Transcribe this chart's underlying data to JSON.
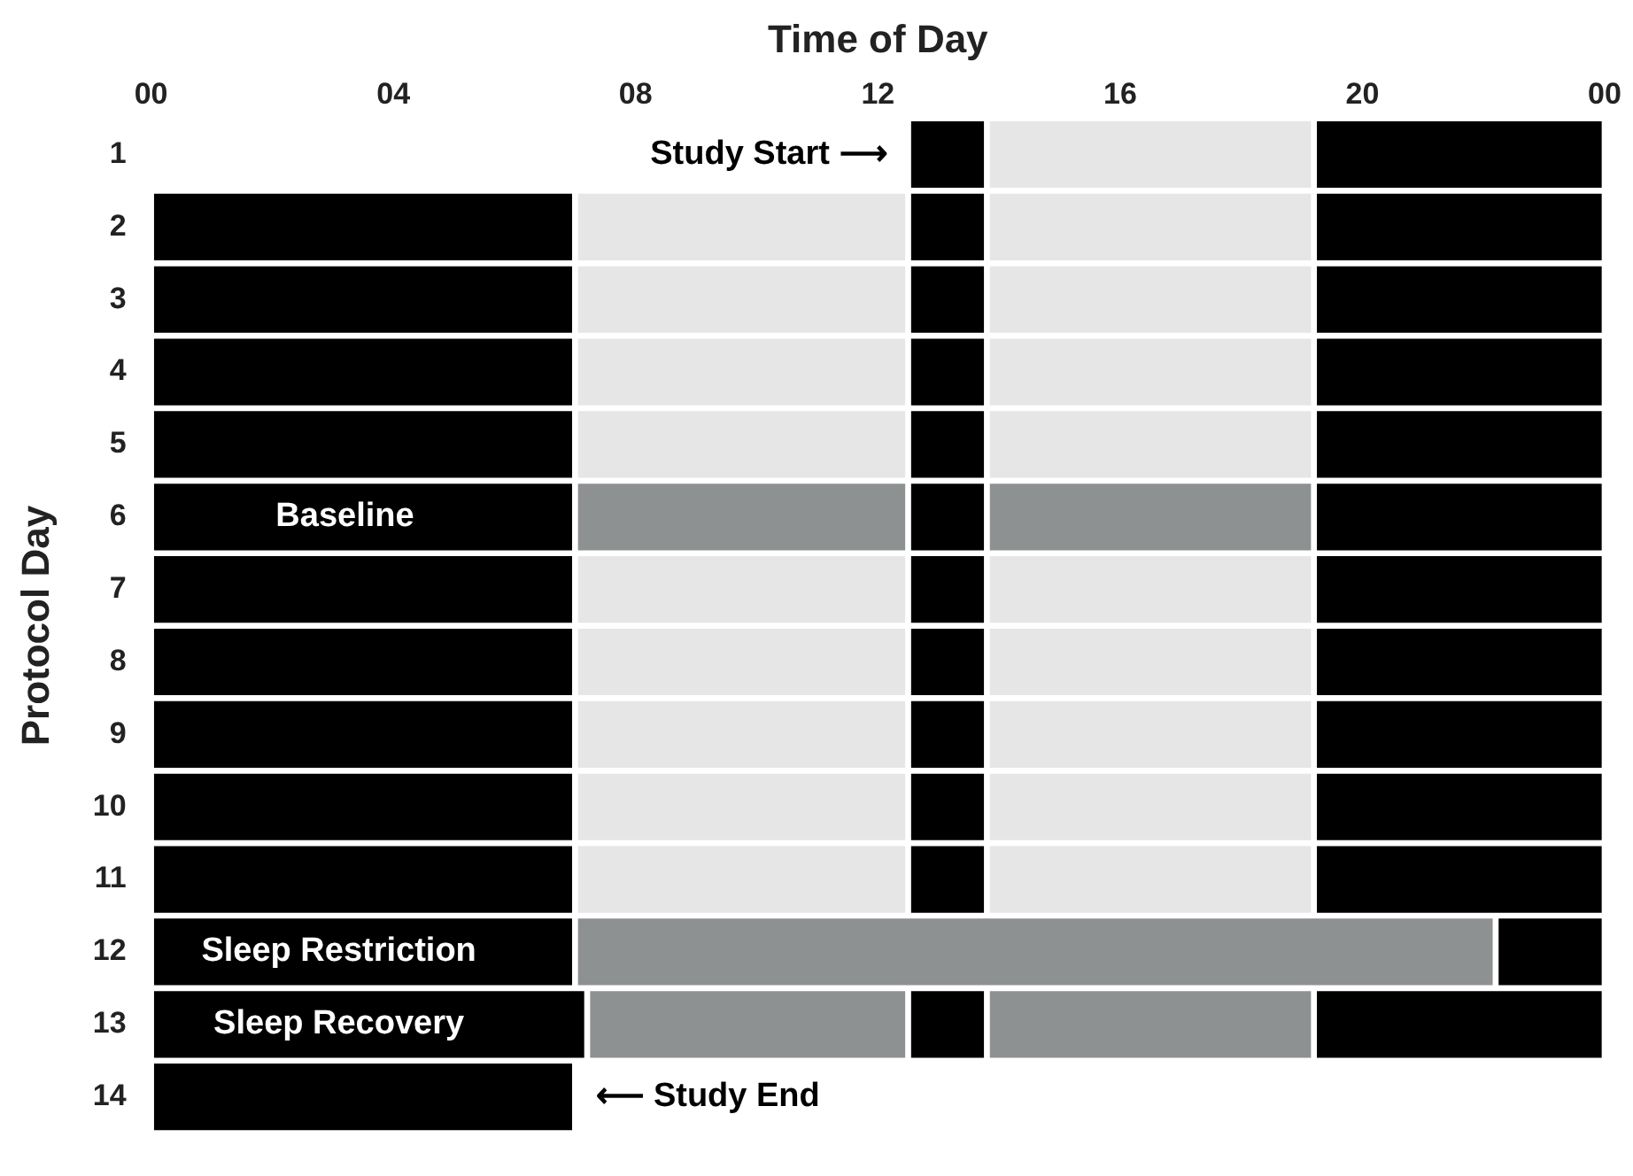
{
  "chart_data": {
    "type": "bar",
    "orientation": "horizontal",
    "xlabel": "Time of Day",
    "ylabel": "Protocol Day",
    "categories": [
      "1",
      "2",
      "3",
      "4",
      "5",
      "6",
      "7",
      "8",
      "9",
      "10",
      "11",
      "12",
      "13",
      "14"
    ],
    "xlim": [
      0,
      24
    ],
    "xticks": [
      {
        "value": 0,
        "label": "00"
      },
      {
        "value": 4,
        "label": "04"
      },
      {
        "value": 8,
        "label": "08"
      },
      12,
      16,
      20,
      {
        "value": 24,
        "label": "00"
      }
    ],
    "series": [
      {
        "base": [
          null,
          0,
          0,
          0,
          0,
          0,
          0,
          0,
          0,
          0,
          0,
          0,
          0,
          0
        ],
        "values": [
          null,
          7,
          7,
          7,
          7,
          7,
          7,
          7,
          7,
          7,
          7,
          7,
          7.2,
          7
        ],
        "colors": [
          "#000000",
          "#000000",
          "#000000",
          "#000000",
          "#000000",
          "#000000",
          "#000000",
          "#000000",
          "#000000",
          "#000000",
          "#000000",
          "#000000",
          "#000000",
          "#000000"
        ]
      },
      {
        "base": [
          null,
          7,
          7,
          7,
          7,
          7,
          7,
          7,
          7,
          7,
          7,
          7,
          7.2,
          null
        ],
        "values": [
          null,
          5.5,
          5.5,
          5.5,
          5.5,
          5.5,
          5.5,
          5.5,
          5.5,
          5.5,
          5.5,
          15.2,
          5.3,
          null
        ],
        "colors": [
          "#e6e6e6",
          "#e6e6e6",
          "#e6e6e6",
          "#e6e6e6",
          "#e6e6e6",
          "#8e9191",
          "#e6e6e6",
          "#e6e6e6",
          "#e6e6e6",
          "#e6e6e6",
          "#e6e6e6",
          "#8e9191",
          "#8e9191",
          "#e6e6e6"
        ]
      },
      {
        "base": [
          12.5,
          12.5,
          12.5,
          12.5,
          12.5,
          12.5,
          12.5,
          12.5,
          12.5,
          12.5,
          12.5,
          null,
          12.5,
          null
        ],
        "values": [
          1.3,
          1.3,
          1.3,
          1.3,
          1.3,
          1.3,
          1.3,
          1.3,
          1.3,
          1.3,
          1.3,
          null,
          1.3,
          null
        ],
        "colors": [
          "#000000",
          "#000000",
          "#000000",
          "#000000",
          "#000000",
          "#000000",
          "#000000",
          "#000000",
          "#000000",
          "#000000",
          "#000000",
          "#000000",
          "#000000",
          "#000000"
        ]
      },
      {
        "base": [
          13.8,
          13.8,
          13.8,
          13.8,
          13.8,
          13.8,
          13.8,
          13.8,
          13.8,
          13.8,
          13.8,
          null,
          13.8,
          null
        ],
        "values": [
          5.4,
          5.4,
          5.4,
          5.4,
          5.4,
          5.4,
          5.4,
          5.4,
          5.4,
          5.4,
          5.4,
          null,
          5.4,
          null
        ],
        "colors": [
          "#e6e6e6",
          "#e6e6e6",
          "#e6e6e6",
          "#e6e6e6",
          "#e6e6e6",
          "#8e9191",
          "#e6e6e6",
          "#e6e6e6",
          "#e6e6e6",
          "#e6e6e6",
          "#e6e6e6",
          "#e6e6e6",
          "#8e9191",
          "#e6e6e6"
        ]
      },
      {
        "base": [
          19.2,
          19.2,
          19.2,
          19.2,
          19.2,
          19.2,
          19.2,
          19.2,
          19.2,
          19.2,
          19.2,
          22.2,
          19.2,
          null
        ],
        "values": [
          4.8,
          4.8,
          4.8,
          4.8,
          4.8,
          4.8,
          4.8,
          4.8,
          4.8,
          4.8,
          4.8,
          1.8,
          4.8,
          null
        ],
        "colors": [
          "#000000",
          "#000000",
          "#000000",
          "#000000",
          "#000000",
          "#000000",
          "#000000",
          "#000000",
          "#000000",
          "#000000",
          "#000000",
          "#000000",
          "#000000",
          "#000000"
        ]
      }
    ],
    "annotations": [
      {
        "text": "Study Start ⟶",
        "x": 12.5,
        "y": "1"
      },
      {
        "text": "Baseline",
        "x": 3.2,
        "y": "6"
      },
      {
        "text": "Sleep Restriction",
        "x": 3.1,
        "y": "12"
      },
      {
        "text": "Sleep Recovery",
        "x": 3.1,
        "y": "13"
      },
      {
        "text": "⟵ Study End",
        "x": 7,
        "y": "14"
      }
    ]
  }
}
